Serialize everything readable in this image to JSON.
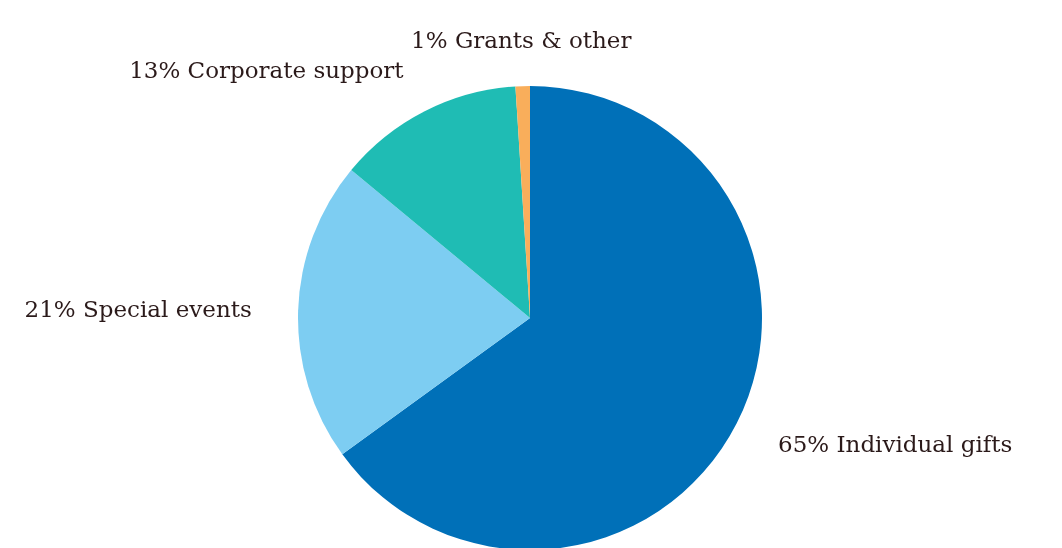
{
  "chart_data": {
    "type": "pie",
    "categories": [
      "Individual gifts",
      "Special events",
      "Corporate support",
      "Grants & other"
    ],
    "values": [
      65,
      21,
      13,
      1
    ],
    "value_labels": [
      "65%",
      "21%",
      "13%",
      "1%"
    ],
    "colors": [
      "#0070b8",
      "#7dcdf2",
      "#1fbcb4",
      "#f9ae5b"
    ]
  }
}
